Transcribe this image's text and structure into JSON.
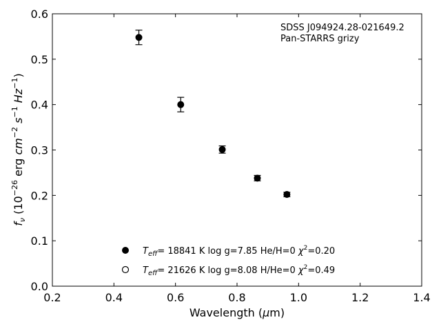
{
  "chart_data": {
    "type": "scatter",
    "xlabel": "Wavelength (µm)",
    "ylabel": "f_ν (10^-26 erg cm^-2 s^-1 Hz^-1)",
    "xlim": [
      0.2,
      1.4
    ],
    "ylim": [
      0.0,
      0.6
    ],
    "x_ticks": [
      "0.2",
      "0.4",
      "0.6",
      "0.8",
      "1.0",
      "1.2",
      "1.4"
    ],
    "y_ticks": [
      "0.0",
      "0.1",
      "0.2",
      "0.3",
      "0.4",
      "0.5",
      "0.6"
    ],
    "grid": false,
    "annotation_lines": [
      "SDSS J094924.28-021649.2",
      "Pan-STARRS grizy"
    ],
    "observed": [
      {
        "x": 0.481,
        "y": 0.548,
        "yerr": 0.016
      },
      {
        "x": 0.617,
        "y": 0.4,
        "yerr": 0.016
      },
      {
        "x": 0.752,
        "y": 0.301,
        "yerr": 0.008
      },
      {
        "x": 0.866,
        "y": 0.238,
        "yerr": 0.006
      },
      {
        "x": 0.962,
        "y": 0.202,
        "yerr": 0.005
      }
    ],
    "legend_position": "lower-center",
    "legend": [
      {
        "marker": "filled-circle",
        "teff_value": "= 18841 K",
        "params": "log g=7.85  He/H=0",
        "chi2": "=0.20"
      },
      {
        "marker": "open-circle",
        "teff_value": "= 21626 K",
        "params": "log g=8.08  H/He=0",
        "chi2": "=0.49"
      }
    ]
  }
}
